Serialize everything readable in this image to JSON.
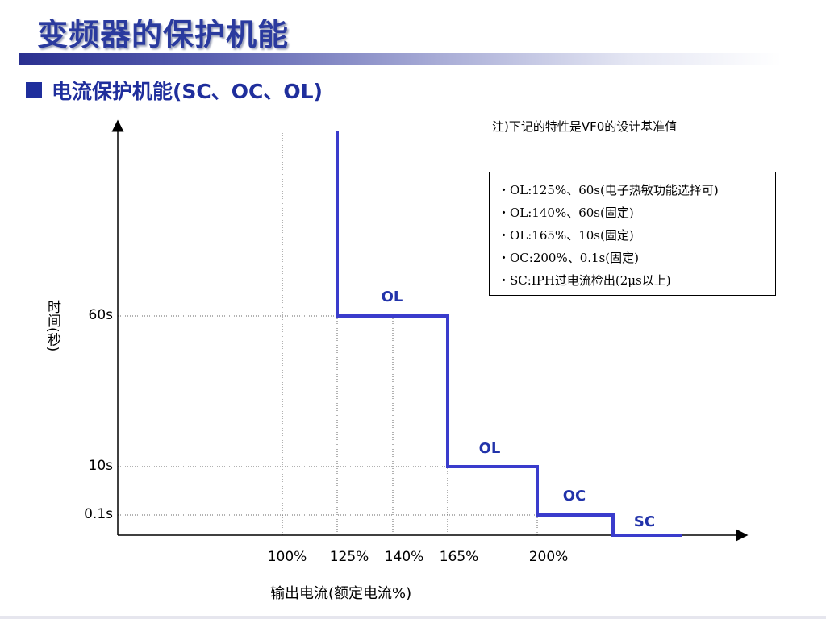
{
  "slide": {
    "title": "变频器的保护机能",
    "subtitle": "电流保护机能(SC、OC、OL)",
    "note": "注)下记的特性是VF0的设计基准值",
    "legend": [
      "・OL:125%、60s(电子热敏功能选择可)",
      "・OL:140%、60s(固定)",
      "・OL:165%、10s(固定)",
      "・OC:200%、0.1s(固定)",
      "・SC:IPH过电流检出(2μs以上)"
    ],
    "colors": {
      "title": "#2a3a9e",
      "curve": "#3a3ccc",
      "region_label": "#2233aa"
    }
  },
  "chart_data": {
    "type": "step-line",
    "xlabel": "输出电流(额定电流%)",
    "ylabel": "时间(秒)",
    "x_ticks": [
      "100%",
      "125%",
      "140%",
      "165%",
      "200%"
    ],
    "y_ticks": [
      "60s",
      "10s",
      "0.1s"
    ],
    "regions": [
      {
        "label": "OL",
        "current_min": 125,
        "current_max": 165,
        "time": "60s"
      },
      {
        "label": "OL",
        "current_min": 165,
        "current_max": 200,
        "time": "10s"
      },
      {
        "label": "OC",
        "current_min": 200,
        "time": "0.1s"
      },
      {
        "label": "SC",
        "time": "2μs"
      }
    ],
    "curve": [
      {
        "current": 125,
        "time": "∞"
      },
      {
        "current": 125,
        "time": "60s"
      },
      {
        "current": 165,
        "time": "60s"
      },
      {
        "current": 165,
        "time": "10s"
      },
      {
        "current": 200,
        "time": "10s"
      },
      {
        "current": 200,
        "time": "0.1s"
      },
      {
        "current": "SC",
        "time": "0.1s"
      },
      {
        "current": "SC",
        "time": "2μs"
      }
    ]
  }
}
